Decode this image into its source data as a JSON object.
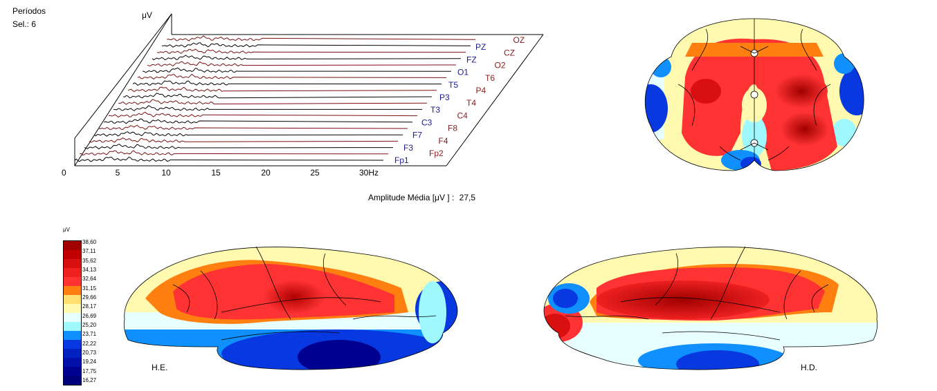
{
  "header": {
    "periods_label": "Períodos",
    "selection_label": "Sel.: 6"
  },
  "spectrum": {
    "unit_label": "μV",
    "x_axis": {
      "origin": "0",
      "ticks": [
        "5",
        "10",
        "15",
        "20",
        "25",
        "30Hz"
      ]
    },
    "left_channels": [
      "Fp1",
      "F3",
      "F7",
      "C3",
      "T3",
      "P3",
      "T5",
      "O1",
      "FZ",
      "PZ"
    ],
    "right_channels": [
      "Fp2",
      "F4",
      "F8",
      "C4",
      "T4",
      "P4",
      "T6",
      "O2",
      "CZ",
      "OZ"
    ],
    "left_channel_color": "#1a1a8c",
    "right_channel_color": "#8b1a1a"
  },
  "amplitude": {
    "label": "Amplitude Média [μV ] :",
    "value": "27,5"
  },
  "colorbar": {
    "unit": "μV",
    "labels": [
      "38,60",
      "37,11",
      "35,62",
      "34,13",
      "32,64",
      "31,15",
      "29,66",
      "28,17",
      "26,69",
      "25,20",
      "23,71",
      "22,22",
      "20,73",
      "19,24",
      "17,75",
      "16,27"
    ],
    "colors": [
      "#a00000",
      "#c00000",
      "#d81010",
      "#ee2020",
      "#ff3333",
      "#ff8010",
      "#ffe070",
      "#fffab0",
      "#e8ffff",
      "#a0f8ff",
      "#1090ff",
      "#0838e0",
      "#0020c0",
      "#0010a8",
      "#000090",
      "#00007a"
    ]
  },
  "brain": {
    "left_label": "H.E.",
    "right_label": "H.D."
  }
}
